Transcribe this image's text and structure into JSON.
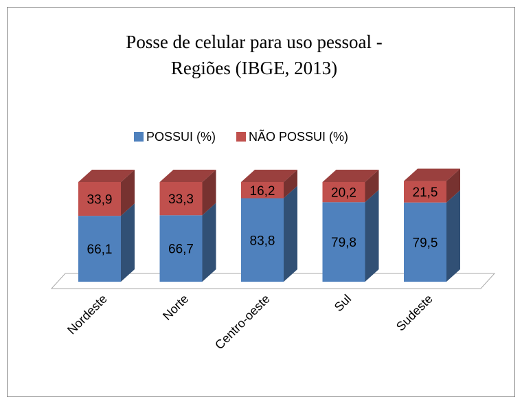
{
  "chart_data": {
    "type": "bar3d_stacked",
    "title": [
      "Posse de celular para uso pessoal -",
      "Regiões (IBGE, 2013)"
    ],
    "categories": [
      "Nordeste",
      "Norte",
      "Centro-oeste",
      "Sul",
      "Sudeste"
    ],
    "series": [
      {
        "name": "POSSUI (%)",
        "color": "#4f81bd",
        "values": [
          66.1,
          66.7,
          83.8,
          79.8,
          79.5
        ],
        "value_labels": [
          "66,1",
          "66,7",
          "83,8",
          "79,8",
          "79,5"
        ]
      },
      {
        "name": "NÃO POSSUI (%)",
        "color": "#c0504d",
        "values": [
          33.9,
          33.3,
          16.2,
          20.2,
          21.5
        ],
        "value_labels": [
          "33,9",
          "33,3",
          "16,2",
          "20,2",
          "21,5"
        ]
      }
    ],
    "ylim": [
      0,
      100
    ],
    "legend": "top"
  }
}
